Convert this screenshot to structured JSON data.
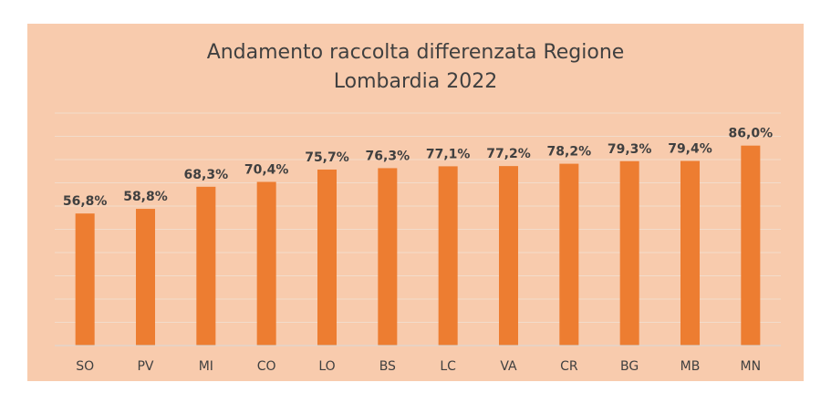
{
  "chart_data": {
    "type": "bar",
    "title_lines": [
      "Andamento raccolta differenzata Regione",
      "Lombardia 2022"
    ],
    "categories": [
      "SO",
      "PV",
      "MI",
      "CO",
      "LO",
      "BS",
      "LC",
      "VA",
      "CR",
      "BG",
      "MB",
      "MN"
    ],
    "values": [
      56.8,
      58.8,
      68.3,
      70.4,
      75.7,
      76.3,
      77.1,
      77.2,
      78.2,
      79.3,
      79.4,
      86.0
    ],
    "data_labels": [
      "56,8%",
      "58,8%",
      "68,3%",
      "70,4%",
      "75,7%",
      "76,3%",
      "77,1%",
      "77,2%",
      "78,2%",
      "79,3%",
      "79,4%",
      "86,0%"
    ],
    "ylim": [
      0,
      100
    ],
    "grid": true,
    "legend": "none",
    "colors": {
      "background": "#F8CBAD",
      "bar": "#ED7D31",
      "grid": "#F2DCCB",
      "axis": "#D9D9D9",
      "text": "#404040"
    }
  }
}
